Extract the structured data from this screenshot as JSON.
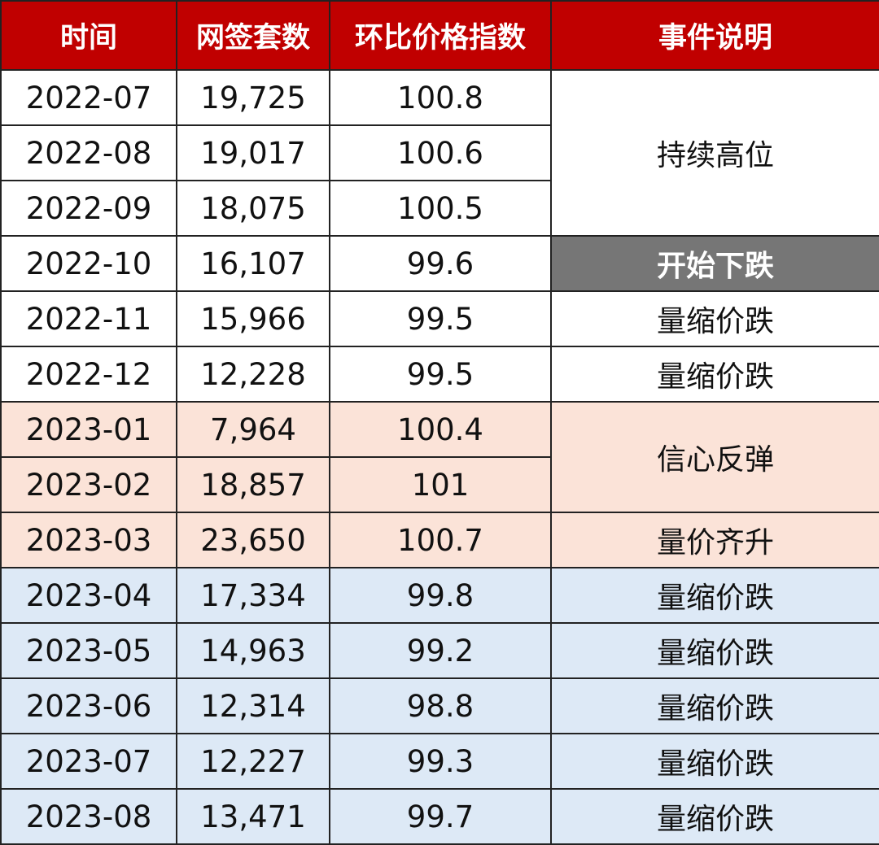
{
  "headers": [
    "时间",
    "网签套数",
    "环比价格指数",
    "事件说明"
  ],
  "colors": {
    "header_bg": "#c00000",
    "header_text": "#ffffff",
    "group_white": "#ffffff",
    "group_peach": "#fbe3d8",
    "group_blue": "#dde9f6",
    "highlight_bg": "#767676",
    "border": "#222222"
  },
  "rows": [
    {
      "month": "2022-07",
      "volume": "19,725",
      "index": "100.8",
      "group": "white"
    },
    {
      "month": "2022-08",
      "volume": "19,017",
      "index": "100.6",
      "group": "white"
    },
    {
      "month": "2022-09",
      "volume": "18,075",
      "index": "100.5",
      "group": "white"
    },
    {
      "month": "2022-10",
      "volume": "16,107",
      "index": "99.6",
      "group": "white"
    },
    {
      "month": "2022-11",
      "volume": "15,966",
      "index": "99.5",
      "group": "white"
    },
    {
      "month": "2022-12",
      "volume": "12,228",
      "index": "99.5",
      "group": "white"
    },
    {
      "month": "2023-01",
      "volume": "7,964",
      "index": "100.4",
      "group": "peach"
    },
    {
      "month": "2023-02",
      "volume": "18,857",
      "index": "101",
      "group": "peach"
    },
    {
      "month": "2023-03",
      "volume": "23,650",
      "index": "100.7",
      "group": "peach"
    },
    {
      "month": "2023-04",
      "volume": "17,334",
      "index": "99.8",
      "group": "blue"
    },
    {
      "month": "2023-05",
      "volume": "14,963",
      "index": "99.2",
      "group": "blue"
    },
    {
      "month": "2023-06",
      "volume": "12,314",
      "index": "98.8",
      "group": "blue"
    },
    {
      "month": "2023-07",
      "volume": "12,227",
      "index": "99.3",
      "group": "blue"
    },
    {
      "month": "2023-08",
      "volume": "13,471",
      "index": "99.7",
      "group": "blue"
    }
  ],
  "events": [
    {
      "text": "持续高位",
      "rowspan": 3,
      "highlight": false
    },
    {
      "text": "开始下跌",
      "rowspan": 1,
      "highlight": true
    },
    {
      "text": "量缩价跌",
      "rowspan": 1,
      "highlight": false
    },
    {
      "text": "量缩价跌",
      "rowspan": 1,
      "highlight": false
    },
    {
      "text": "信心反弹",
      "rowspan": 2,
      "highlight": false
    },
    {
      "text": "量价齐升",
      "rowspan": 1,
      "highlight": false
    },
    {
      "text": "量缩价跌",
      "rowspan": 1,
      "highlight": false
    },
    {
      "text": "量缩价跌",
      "rowspan": 1,
      "highlight": false
    },
    {
      "text": "量缩价跌",
      "rowspan": 1,
      "highlight": false
    },
    {
      "text": "量缩价跌",
      "rowspan": 1,
      "highlight": false
    },
    {
      "text": "量缩价跌",
      "rowspan": 1,
      "highlight": false
    }
  ]
}
